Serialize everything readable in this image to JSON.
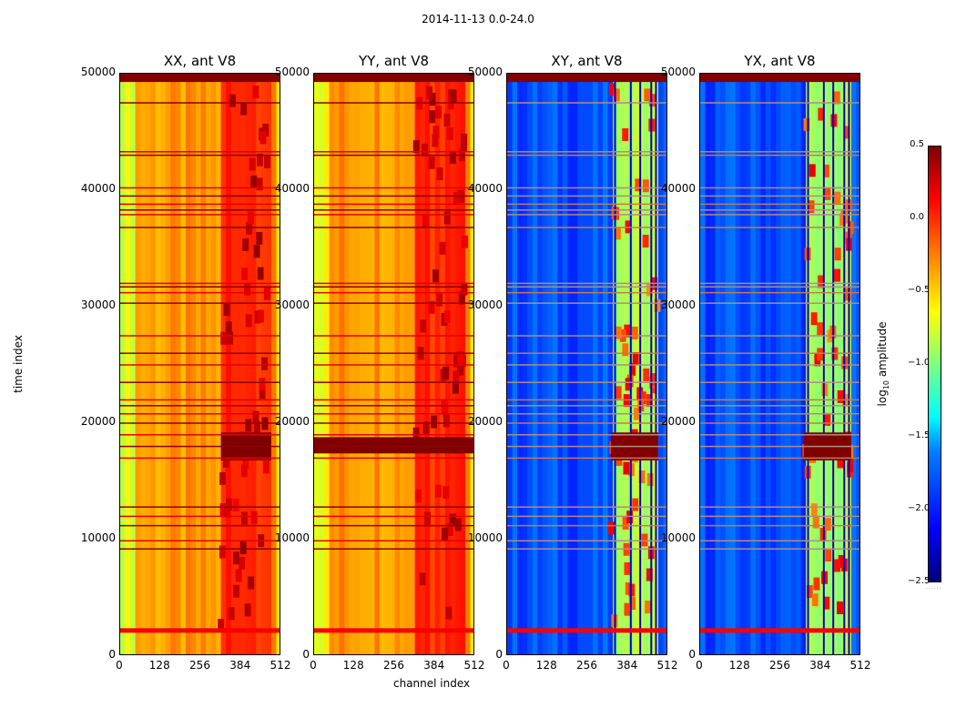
{
  "chart_data": {
    "type": "heatmap",
    "suptitle": "2014-11-13 0.0-24.0",
    "xlabel": "channel index",
    "ylabel": "time index",
    "x_ticks": [
      "0",
      "128",
      "256",
      "384",
      "512"
    ],
    "y_ticks": [
      "0",
      "10000",
      "20000",
      "30000",
      "40000",
      "50000"
    ],
    "xlim": [
      0,
      512
    ],
    "ylim": [
      0,
      50000
    ],
    "colorbar": {
      "label": "log10 amplitude",
      "ticks": [
        "0.5",
        "0.0",
        "−0.5",
        "−1.0",
        "−1.5",
        "−2.0",
        "−2.5"
      ],
      "range": [
        -2.5,
        0.5
      ],
      "dots": "......"
    },
    "panels": [
      {
        "title": "XX, ant V8",
        "baseline": -0.35,
        "rfi_band": [
          320,
          480
        ]
      },
      {
        "title": "YY, ant V8",
        "baseline": -0.3,
        "rfi_band": [
          320,
          480
        ]
      },
      {
        "title": "XY, ant V8",
        "baseline": -1.9,
        "rfi_band": [
          330,
          480
        ]
      },
      {
        "title": "YX, ant V8",
        "baseline": -1.9,
        "rfi_band": [
          330,
          480
        ]
      }
    ],
    "flagged_time_rows": [
      2200,
      9200,
      9900,
      11200,
      12000,
      12800,
      17000,
      18000,
      19000,
      20000,
      20800,
      21500,
      22000,
      23500,
      25000,
      26000,
      27500,
      30300,
      31200,
      31700,
      32000,
      36800,
      37900,
      38300,
      38800,
      39500,
      40200,
      43000,
      43300,
      47500,
      49600,
      50000
    ]
  }
}
